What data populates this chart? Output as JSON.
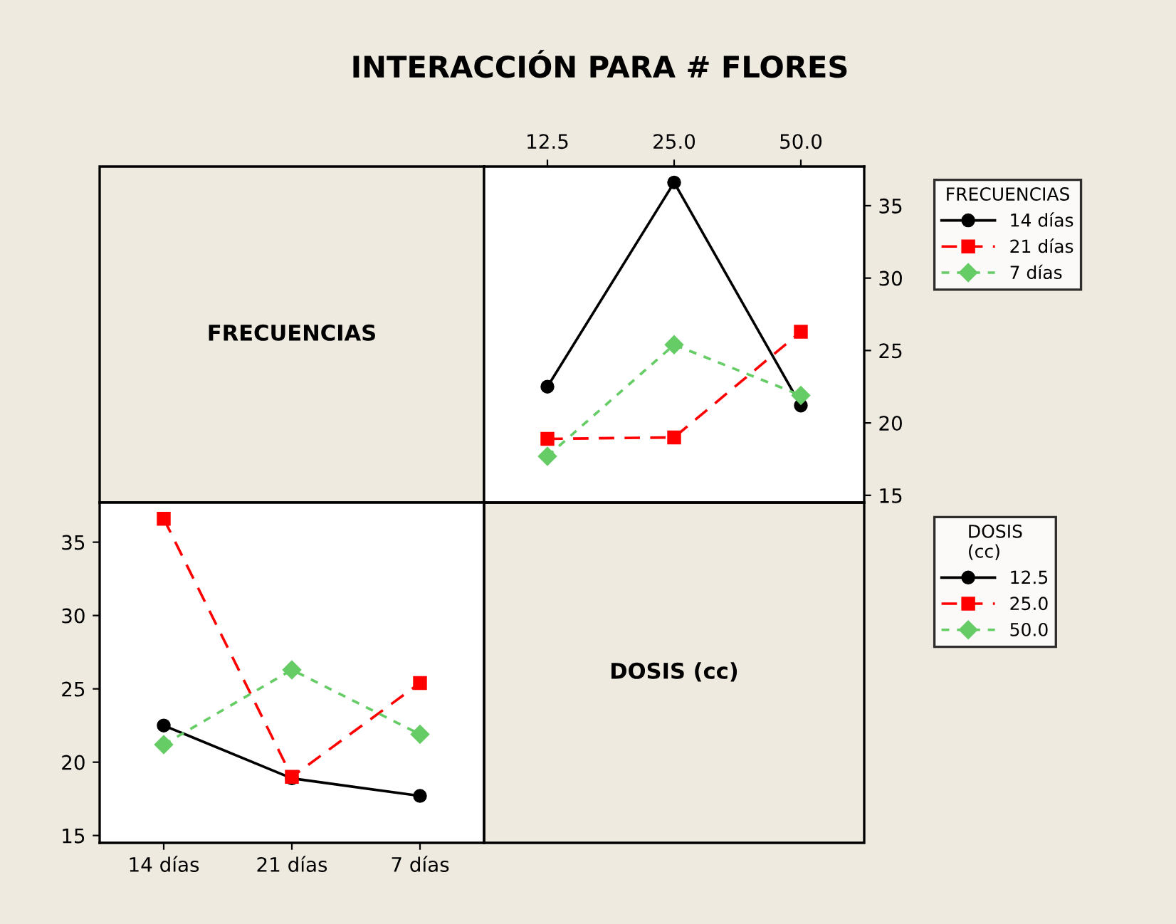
{
  "chart_data": [
    {
      "type": "other",
      "title": "INTERACCIÓN PARA # FLORES",
      "annotations": [
        "FRECUENCIAS"
      ]
    },
    {
      "type": "line",
      "categories": [
        "12.5",
        "25.0",
        "50.0"
      ],
      "ylim": [
        14.5,
        37.7
      ],
      "yticks": [
        15,
        20,
        25,
        30,
        35
      ],
      "legend": "right",
      "legend_title": "FRECUENCIAS",
      "grid": false,
      "series": [
        {
          "name": "14 días",
          "color": "#000000",
          "marker": "circle",
          "line_style": "solid",
          "values": [
            22.5,
            36.6,
            21.2
          ]
        },
        {
          "name": "21 días",
          "color": "#ff0000",
          "marker": "square",
          "line_style": "dashed",
          "values": [
            18.9,
            19.0,
            26.3
          ]
        },
        {
          "name": "7 días",
          "color": "#66cc66",
          "marker": "diamond",
          "line_style": "dotted",
          "values": [
            17.7,
            25.4,
            21.9
          ]
        }
      ]
    },
    {
      "type": "line",
      "categories": [
        "14 días",
        "21 días",
        "7 días"
      ],
      "ylim": [
        14.5,
        37.7
      ],
      "yticks": [
        15,
        20,
        25,
        30,
        35
      ],
      "legend": "right",
      "legend_title": "DOSIS\n(cc)",
      "grid": false,
      "series": [
        {
          "name": "12.5",
          "color": "#000000",
          "marker": "circle",
          "line_style": "solid",
          "values": [
            22.5,
            18.9,
            17.7
          ]
        },
        {
          "name": "25.0",
          "color": "#ff0000",
          "marker": "square",
          "line_style": "dashed",
          "values": [
            36.6,
            19.0,
            25.4
          ]
        },
        {
          "name": "50.0",
          "color": "#66cc66",
          "marker": "diamond",
          "line_style": "dotted",
          "values": [
            21.2,
            26.3,
            21.9
          ]
        }
      ]
    },
    {
      "type": "other",
      "annotations": [
        "DOSIS (cc)"
      ]
    }
  ]
}
